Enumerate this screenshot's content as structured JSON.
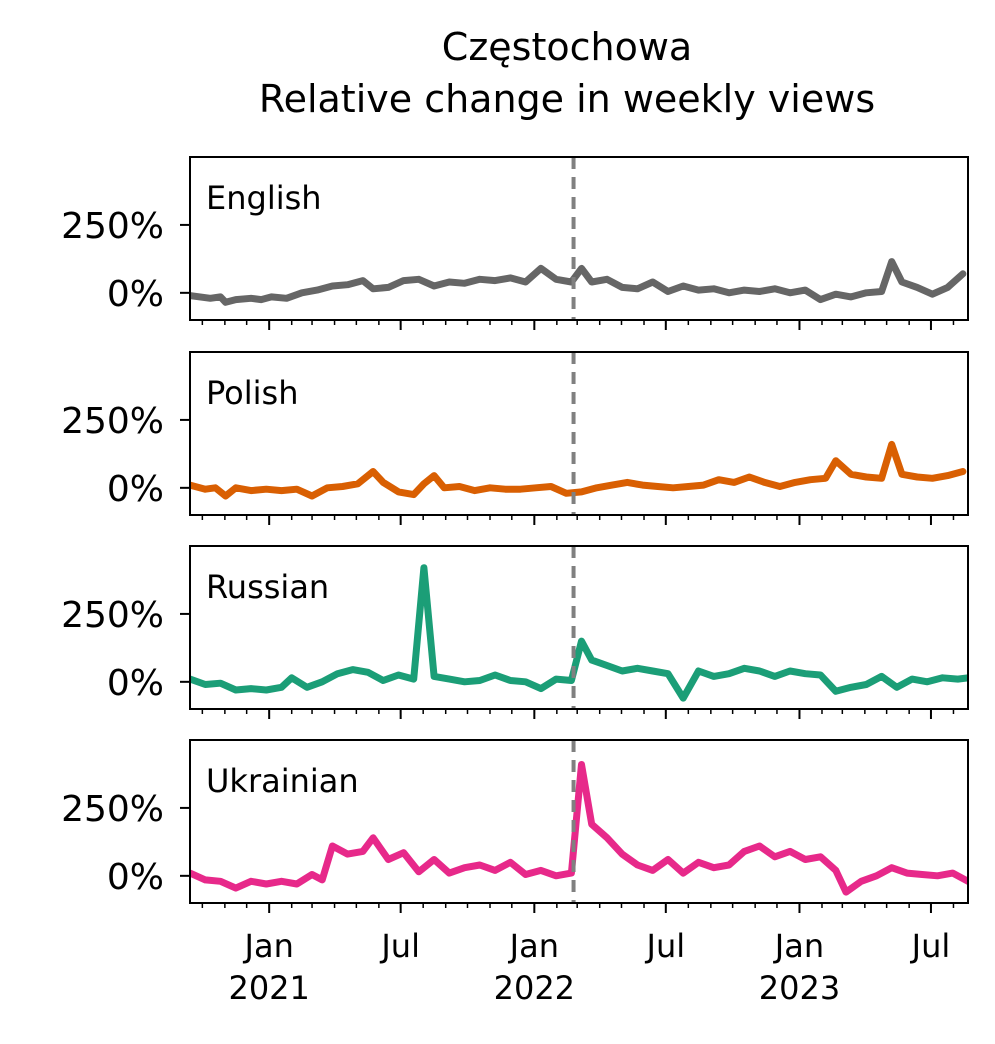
{
  "chart_data": {
    "type": "line",
    "title_line1": "Częstochowa",
    "title_line2": "Relative change in weekly views",
    "xlabel": "",
    "ylabel": "",
    "grid": false,
    "x_range": [
      "2020-09-14",
      "2023-08-21"
    ],
    "y_range": [
      -100,
      500
    ],
    "y_ticks": [
      {
        "value": 0,
        "label": "0%"
      },
      {
        "value": 250,
        "label": "250%"
      }
    ],
    "x_ticks": [
      {
        "date": "2021-01-01",
        "line1": "Jan",
        "line2": "2021"
      },
      {
        "date": "2021-07-01",
        "line1": "Jul",
        "line2": ""
      },
      {
        "date": "2022-01-01",
        "line1": "Jan",
        "line2": "2022"
      },
      {
        "date": "2022-07-01",
        "line1": "Jul",
        "line2": ""
      },
      {
        "date": "2023-01-01",
        "line1": "Jan",
        "line2": "2023"
      },
      {
        "date": "2023-07-01",
        "line1": "Jul",
        "line2": ""
      }
    ],
    "event_line_date": "2022-02-24",
    "event_line_color": "#808080",
    "panels": [
      {
        "name": "English",
        "color": "#666666",
        "points": [
          [
            "2020-09-14",
            -10
          ],
          [
            "2020-10-12",
            -20
          ],
          [
            "2020-10-26",
            -15
          ],
          [
            "2020-11-02",
            -35
          ],
          [
            "2020-11-16",
            -25
          ],
          [
            "2020-12-07",
            -20
          ],
          [
            "2020-12-21",
            -25
          ],
          [
            "2021-01-04",
            -15
          ],
          [
            "2021-01-25",
            -20
          ],
          [
            "2021-02-15",
            0
          ],
          [
            "2021-03-08",
            10
          ],
          [
            "2021-03-29",
            25
          ],
          [
            "2021-04-19",
            30
          ],
          [
            "2021-05-10",
            45
          ],
          [
            "2021-05-24",
            15
          ],
          [
            "2021-06-14",
            20
          ],
          [
            "2021-07-05",
            45
          ],
          [
            "2021-07-26",
            50
          ],
          [
            "2021-08-16",
            25
          ],
          [
            "2021-09-06",
            40
          ],
          [
            "2021-09-27",
            35
          ],
          [
            "2021-10-18",
            50
          ],
          [
            "2021-11-08",
            45
          ],
          [
            "2021-11-29",
            55
          ],
          [
            "2021-12-20",
            40
          ],
          [
            "2022-01-10",
            90
          ],
          [
            "2022-01-31",
            50
          ],
          [
            "2022-02-21",
            40
          ],
          [
            "2022-03-07",
            90
          ],
          [
            "2022-03-21",
            40
          ],
          [
            "2022-04-11",
            50
          ],
          [
            "2022-05-02",
            20
          ],
          [
            "2022-05-23",
            15
          ],
          [
            "2022-06-13",
            40
          ],
          [
            "2022-07-04",
            5
          ],
          [
            "2022-07-25",
            25
          ],
          [
            "2022-08-15",
            10
          ],
          [
            "2022-09-05",
            15
          ],
          [
            "2022-09-26",
            0
          ],
          [
            "2022-10-17",
            10
          ],
          [
            "2022-11-07",
            5
          ],
          [
            "2022-11-28",
            15
          ],
          [
            "2022-12-19",
            0
          ],
          [
            "2023-01-09",
            10
          ],
          [
            "2023-01-30",
            -25
          ],
          [
            "2023-02-20",
            -5
          ],
          [
            "2023-03-13",
            -15
          ],
          [
            "2023-04-03",
            0
          ],
          [
            "2023-04-24",
            5
          ],
          [
            "2023-05-08",
            115
          ],
          [
            "2023-05-22",
            40
          ],
          [
            "2023-06-12",
            20
          ],
          [
            "2023-07-03",
            -5
          ],
          [
            "2023-07-24",
            20
          ],
          [
            "2023-08-14",
            70
          ]
        ]
      },
      {
        "name": "Polish",
        "color": "#d95f02",
        "points": [
          [
            "2020-09-14",
            10
          ],
          [
            "2020-10-05",
            -5
          ],
          [
            "2020-10-19",
            0
          ],
          [
            "2020-11-02",
            -30
          ],
          [
            "2020-11-16",
            0
          ],
          [
            "2020-12-07",
            -10
          ],
          [
            "2020-12-28",
            -5
          ],
          [
            "2021-01-18",
            -10
          ],
          [
            "2021-02-08",
            -5
          ],
          [
            "2021-03-01",
            -30
          ],
          [
            "2021-03-22",
            0
          ],
          [
            "2021-04-12",
            5
          ],
          [
            "2021-05-03",
            15
          ],
          [
            "2021-05-24",
            60
          ],
          [
            "2021-06-07",
            20
          ],
          [
            "2021-06-28",
            -15
          ],
          [
            "2021-07-19",
            -25
          ],
          [
            "2021-08-02",
            15
          ],
          [
            "2021-08-16",
            45
          ],
          [
            "2021-08-30",
            0
          ],
          [
            "2021-09-20",
            5
          ],
          [
            "2021-10-11",
            -10
          ],
          [
            "2021-11-01",
            0
          ],
          [
            "2021-11-22",
            -5
          ],
          [
            "2021-12-13",
            -5
          ],
          [
            "2022-01-03",
            0
          ],
          [
            "2022-01-24",
            5
          ],
          [
            "2022-02-14",
            -20
          ],
          [
            "2022-03-07",
            -15
          ],
          [
            "2022-03-28",
            0
          ],
          [
            "2022-04-18",
            10
          ],
          [
            "2022-05-09",
            20
          ],
          [
            "2022-05-30",
            10
          ],
          [
            "2022-06-20",
            5
          ],
          [
            "2022-07-11",
            0
          ],
          [
            "2022-08-01",
            5
          ],
          [
            "2022-08-22",
            10
          ],
          [
            "2022-09-12",
            30
          ],
          [
            "2022-10-03",
            20
          ],
          [
            "2022-10-24",
            40
          ],
          [
            "2022-11-14",
            20
          ],
          [
            "2022-12-05",
            5
          ],
          [
            "2022-12-26",
            20
          ],
          [
            "2023-01-16",
            30
          ],
          [
            "2023-02-06",
            35
          ],
          [
            "2023-02-20",
            100
          ],
          [
            "2023-03-13",
            50
          ],
          [
            "2023-04-03",
            40
          ],
          [
            "2023-04-24",
            35
          ],
          [
            "2023-05-08",
            160
          ],
          [
            "2023-05-22",
            50
          ],
          [
            "2023-06-12",
            40
          ],
          [
            "2023-07-03",
            35
          ],
          [
            "2023-07-24",
            45
          ],
          [
            "2023-08-14",
            60
          ]
        ]
      },
      {
        "name": "Russian",
        "color": "#1b9e77",
        "points": [
          [
            "2020-09-14",
            10
          ],
          [
            "2020-10-05",
            -10
          ],
          [
            "2020-10-26",
            -5
          ],
          [
            "2020-11-16",
            -30
          ],
          [
            "2020-12-07",
            -25
          ],
          [
            "2020-12-28",
            -30
          ],
          [
            "2021-01-18",
            -20
          ],
          [
            "2021-02-01",
            15
          ],
          [
            "2021-02-22",
            -20
          ],
          [
            "2021-03-15",
            0
          ],
          [
            "2021-04-05",
            30
          ],
          [
            "2021-04-26",
            45
          ],
          [
            "2021-05-17",
            35
          ],
          [
            "2021-06-07",
            5
          ],
          [
            "2021-06-28",
            25
          ],
          [
            "2021-07-19",
            10
          ],
          [
            "2021-08-02",
            420
          ],
          [
            "2021-08-16",
            20
          ],
          [
            "2021-09-06",
            10
          ],
          [
            "2021-09-27",
            0
          ],
          [
            "2021-10-18",
            5
          ],
          [
            "2021-11-08",
            25
          ],
          [
            "2021-11-29",
            5
          ],
          [
            "2021-12-20",
            0
          ],
          [
            "2022-01-10",
            -25
          ],
          [
            "2022-01-31",
            10
          ],
          [
            "2022-02-21",
            5
          ],
          [
            "2022-03-07",
            150
          ],
          [
            "2022-03-21",
            80
          ],
          [
            "2022-04-11",
            60
          ],
          [
            "2022-05-02",
            40
          ],
          [
            "2022-05-23",
            50
          ],
          [
            "2022-06-13",
            40
          ],
          [
            "2022-07-04",
            30
          ],
          [
            "2022-07-25",
            -60
          ],
          [
            "2022-08-15",
            40
          ],
          [
            "2022-09-05",
            20
          ],
          [
            "2022-09-26",
            30
          ],
          [
            "2022-10-17",
            50
          ],
          [
            "2022-11-07",
            40
          ],
          [
            "2022-11-28",
            20
          ],
          [
            "2022-12-19",
            40
          ],
          [
            "2023-01-09",
            30
          ],
          [
            "2023-01-30",
            25
          ],
          [
            "2023-02-20",
            -35
          ],
          [
            "2023-03-13",
            -20
          ],
          [
            "2023-04-03",
            -10
          ],
          [
            "2023-04-24",
            20
          ],
          [
            "2023-05-15",
            -20
          ],
          [
            "2023-06-05",
            10
          ],
          [
            "2023-06-26",
            0
          ],
          [
            "2023-07-17",
            15
          ],
          [
            "2023-08-07",
            10
          ],
          [
            "2023-08-21",
            15
          ]
        ]
      },
      {
        "name": "Ukrainian",
        "color": "#e7298a",
        "points": [
          [
            "2020-09-14",
            10
          ],
          [
            "2020-10-05",
            -15
          ],
          [
            "2020-10-26",
            -20
          ],
          [
            "2020-11-16",
            -45
          ],
          [
            "2020-12-07",
            -20
          ],
          [
            "2020-12-28",
            -30
          ],
          [
            "2021-01-18",
            -20
          ],
          [
            "2021-02-08",
            -30
          ],
          [
            "2021-03-01",
            5
          ],
          [
            "2021-03-15",
            -15
          ],
          [
            "2021-03-29",
            110
          ],
          [
            "2021-04-19",
            80
          ],
          [
            "2021-05-10",
            90
          ],
          [
            "2021-05-24",
            140
          ],
          [
            "2021-06-14",
            60
          ],
          [
            "2021-07-05",
            85
          ],
          [
            "2021-07-26",
            15
          ],
          [
            "2021-08-16",
            60
          ],
          [
            "2021-09-06",
            10
          ],
          [
            "2021-09-27",
            30
          ],
          [
            "2021-10-18",
            40
          ],
          [
            "2021-11-08",
            20
          ],
          [
            "2021-11-29",
            50
          ],
          [
            "2021-12-20",
            5
          ],
          [
            "2022-01-10",
            20
          ],
          [
            "2022-01-31",
            0
          ],
          [
            "2022-02-21",
            10
          ],
          [
            "2022-03-07",
            410
          ],
          [
            "2022-03-21",
            190
          ],
          [
            "2022-04-11",
            140
          ],
          [
            "2022-05-02",
            80
          ],
          [
            "2022-05-23",
            40
          ],
          [
            "2022-06-13",
            20
          ],
          [
            "2022-07-04",
            60
          ],
          [
            "2022-07-25",
            10
          ],
          [
            "2022-08-15",
            50
          ],
          [
            "2022-09-05",
            30
          ],
          [
            "2022-09-26",
            40
          ],
          [
            "2022-10-17",
            90
          ],
          [
            "2022-11-07",
            110
          ],
          [
            "2022-11-28",
            70
          ],
          [
            "2022-12-19",
            90
          ],
          [
            "2023-01-09",
            60
          ],
          [
            "2023-01-30",
            70
          ],
          [
            "2023-02-20",
            20
          ],
          [
            "2023-03-06",
            -60
          ],
          [
            "2023-03-27",
            -20
          ],
          [
            "2023-04-17",
            0
          ],
          [
            "2023-05-08",
            30
          ],
          [
            "2023-05-29",
            10
          ],
          [
            "2023-06-19",
            5
          ],
          [
            "2023-07-10",
            0
          ],
          [
            "2023-07-31",
            10
          ],
          [
            "2023-08-21",
            -20
          ]
        ]
      }
    ]
  }
}
